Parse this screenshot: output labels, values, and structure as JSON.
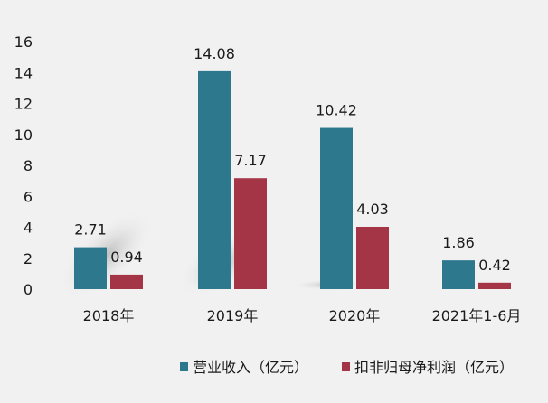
{
  "chart_data": {
    "type": "bar",
    "categories": [
      "2018年",
      "2019年",
      "2020年",
      "2021年1-6月"
    ],
    "series": [
      {
        "name": "营业收入（亿元）",
        "values": [
          2.71,
          14.08,
          10.42,
          1.86
        ],
        "labels": [
          "2.71",
          "14.08",
          "10.42",
          "1.86"
        ],
        "color": "#2e788d"
      },
      {
        "name": "扣非归母净利润（亿元）",
        "values": [
          0.94,
          7.17,
          4.03,
          0.42
        ],
        "labels": [
          "0.94",
          "7.17",
          "4.03",
          "0.42"
        ],
        "color": "#a33546"
      }
    ],
    "yticks": [
      "0",
      "2",
      "4",
      "6",
      "8",
      "10",
      "12",
      "14",
      "16"
    ],
    "ylim": [
      0,
      16
    ],
    "grid": false,
    "legend_position": "bottom-right"
  }
}
